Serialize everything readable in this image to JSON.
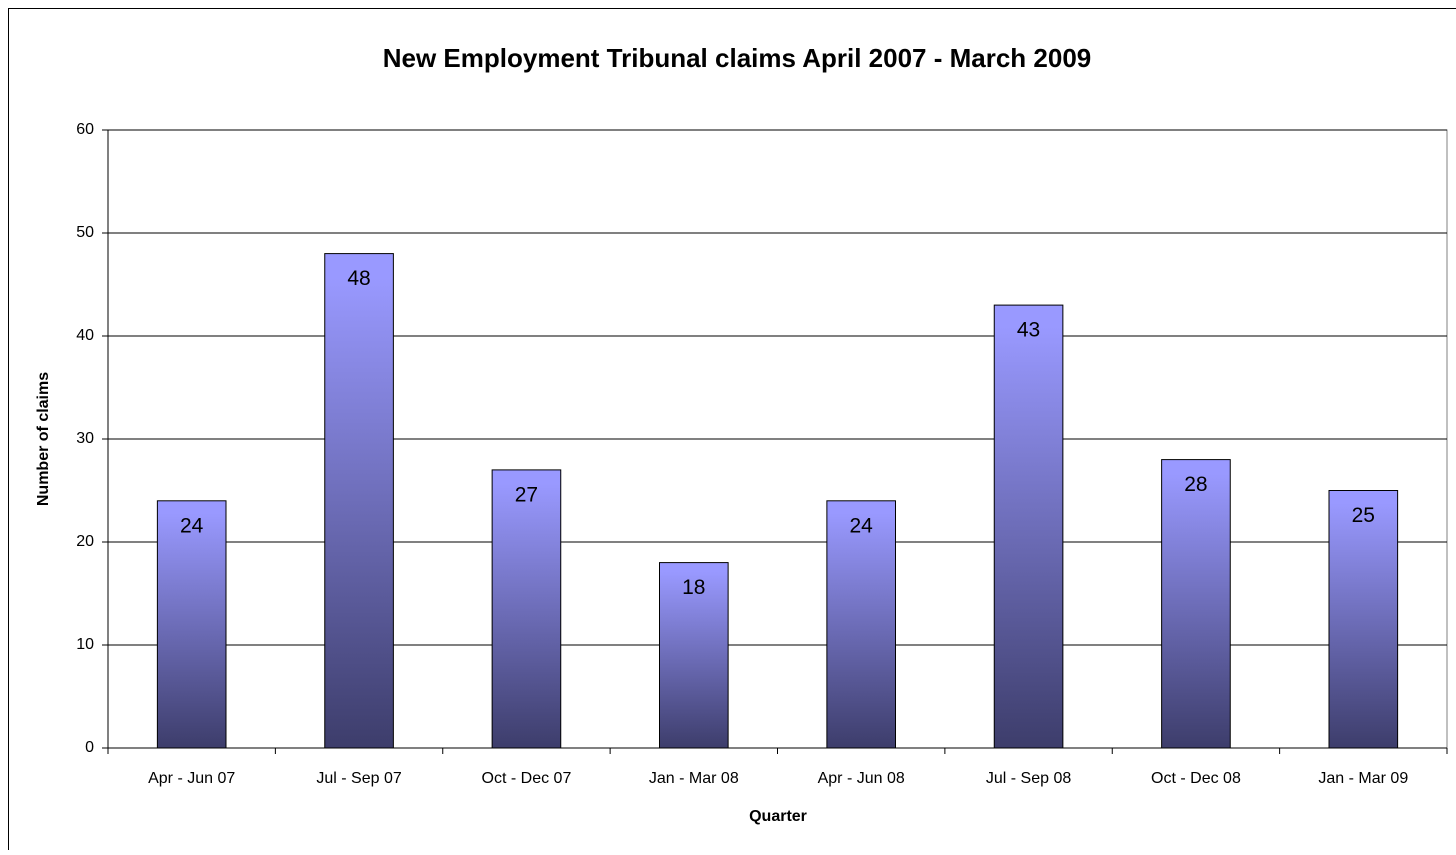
{
  "chart_data": {
    "type": "bar",
    "title": "New Employment Tribunal claims April 2007 - March 2009",
    "x_label": "Quarter",
    "y_label": "Number of claims",
    "categories": [
      "Apr - Jun 07",
      "Jul - Sep 07",
      "Oct - Dec 07",
      "Jan - Mar 08",
      "Apr - Jun 08",
      "Jul - Sep 08",
      "Oct - Dec 08",
      "Jan - Mar 09"
    ],
    "values": [
      24,
      48,
      27,
      18,
      24,
      43,
      28,
      25
    ],
    "color": "#9999ff",
    "ylim": [
      0,
      60
    ],
    "yticks": [
      0,
      10,
      20,
      30,
      40,
      50,
      60
    ],
    "grid": true
  }
}
